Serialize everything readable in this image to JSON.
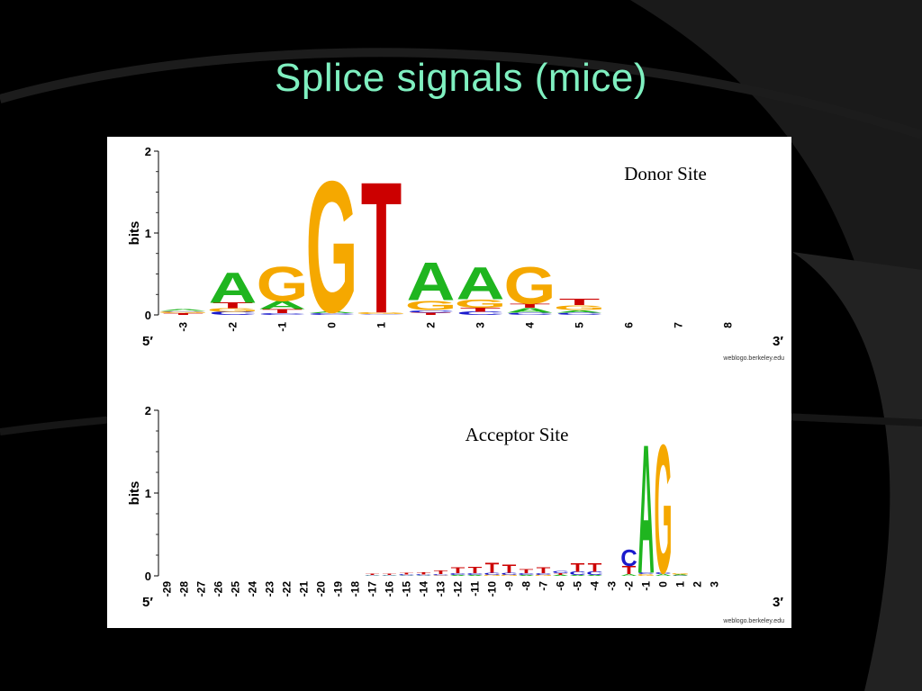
{
  "slide": {
    "title": "Splice signals (mice)"
  },
  "chart_data": [
    {
      "type": "sequence-logo",
      "title": "Donor Site",
      "ylabel": "bits",
      "ylim": [
        0,
        2
      ],
      "yticks": [
        "0",
        "1",
        "2"
      ],
      "end_left": "5′",
      "end_right": "3′",
      "credit": "weblogo.berkeley.edu",
      "positions": [
        {
          "label": "-3",
          "stack": [
            {
              "base": "T",
              "bits": 0.02
            },
            {
              "base": "G",
              "bits": 0.02
            },
            {
              "base": "C",
              "bits": 0.01
            },
            {
              "base": "A",
              "bits": 0.02
            }
          ]
        },
        {
          "label": "-2",
          "stack": [
            {
              "base": "C",
              "bits": 0.04
            },
            {
              "base": "G",
              "bits": 0.04
            },
            {
              "base": "T",
              "bits": 0.07
            },
            {
              "base": "A",
              "bits": 0.38
            }
          ]
        },
        {
          "label": "-1",
          "stack": [
            {
              "base": "C",
              "bits": 0.02
            },
            {
              "base": "T",
              "bits": 0.05
            },
            {
              "base": "A",
              "bits": 0.1
            },
            {
              "base": "G",
              "bits": 0.43
            }
          ]
        },
        {
          "label": "0",
          "stack": [
            {
              "base": "C",
              "bits": 0.02
            },
            {
              "base": "A",
              "bits": 0.02
            },
            {
              "base": "G",
              "bits": 1.65
            }
          ]
        },
        {
          "label": "1",
          "stack": [
            {
              "base": "C",
              "bits": 0.01
            },
            {
              "base": "G",
              "bits": 0.02
            },
            {
              "base": "T",
              "bits": 1.65
            }
          ]
        },
        {
          "label": "2",
          "stack": [
            {
              "base": "T",
              "bits": 0.03
            },
            {
              "base": "C",
              "bits": 0.03
            },
            {
              "base": "G",
              "bits": 0.12
            },
            {
              "base": "A",
              "bits": 0.48
            }
          ]
        },
        {
          "label": "3",
          "stack": [
            {
              "base": "C",
              "bits": 0.04
            },
            {
              "base": "T",
              "bits": 0.05
            },
            {
              "base": "G",
              "bits": 0.1
            },
            {
              "base": "A",
              "bits": 0.4
            }
          ]
        },
        {
          "label": "4",
          "stack": [
            {
              "base": "C",
              "bits": 0.03
            },
            {
              "base": "A",
              "bits": 0.06
            },
            {
              "base": "T",
              "bits": 0.05
            },
            {
              "base": "G",
              "bits": 0.46
            }
          ]
        },
        {
          "label": "5",
          "stack": [
            {
              "base": "C",
              "bits": 0.03
            },
            {
              "base": "A",
              "bits": 0.03
            },
            {
              "base": "G",
              "bits": 0.06
            },
            {
              "base": "T",
              "bits": 0.08
            }
          ]
        },
        {
          "label": "6",
          "stack": []
        },
        {
          "label": "7",
          "stack": []
        },
        {
          "label": "8",
          "stack": []
        }
      ]
    },
    {
      "type": "sequence-logo",
      "title": "Acceptor Site",
      "ylabel": "bits",
      "ylim": [
        0,
        2
      ],
      "yticks": [
        "0",
        "1",
        "2"
      ],
      "end_left": "5′",
      "end_right": "3′",
      "credit": "weblogo.berkeley.edu",
      "positions": [
        {
          "label": "-29",
          "stack": []
        },
        {
          "label": "-28",
          "stack": []
        },
        {
          "label": "-27",
          "stack": []
        },
        {
          "label": "-26",
          "stack": []
        },
        {
          "label": "-25",
          "stack": []
        },
        {
          "label": "-24",
          "stack": []
        },
        {
          "label": "-23",
          "stack": []
        },
        {
          "label": "-22",
          "stack": []
        },
        {
          "label": "-21",
          "stack": []
        },
        {
          "label": "-20",
          "stack": []
        },
        {
          "label": "-19",
          "stack": []
        },
        {
          "label": "-18",
          "stack": []
        },
        {
          "label": "-17",
          "stack": [
            {
              "base": "A",
              "bits": 0.005
            },
            {
              "base": "C",
              "bits": 0.005
            },
            {
              "base": "T",
              "bits": 0.01
            }
          ]
        },
        {
          "label": "-16",
          "stack": [
            {
              "base": "A",
              "bits": 0.005
            },
            {
              "base": "C",
              "bits": 0.008
            },
            {
              "base": "T",
              "bits": 0.015
            }
          ]
        },
        {
          "label": "-15",
          "stack": [
            {
              "base": "A",
              "bits": 0.005
            },
            {
              "base": "C",
              "bits": 0.01
            },
            {
              "base": "T",
              "bits": 0.02
            }
          ]
        },
        {
          "label": "-14",
          "stack": [
            {
              "base": "A",
              "bits": 0.005
            },
            {
              "base": "C",
              "bits": 0.01
            },
            {
              "base": "T",
              "bits": 0.025
            }
          ]
        },
        {
          "label": "-13",
          "stack": [
            {
              "base": "G",
              "bits": 0.005
            },
            {
              "base": "C",
              "bits": 0.015
            },
            {
              "base": "T",
              "bits": 0.04
            }
          ]
        },
        {
          "label": "-12",
          "stack": [
            {
              "base": "A",
              "bits": 0.01
            },
            {
              "base": "C",
              "bits": 0.02
            },
            {
              "base": "T",
              "bits": 0.07
            }
          ]
        },
        {
          "label": "-11",
          "stack": [
            {
              "base": "A",
              "bits": 0.01
            },
            {
              "base": "C",
              "bits": 0.02
            },
            {
              "base": "T",
              "bits": 0.08
            }
          ]
        },
        {
          "label": "-10",
          "stack": [
            {
              "base": "G",
              "bits": 0.01
            },
            {
              "base": "C",
              "bits": 0.03
            },
            {
              "base": "T",
              "bits": 0.12
            }
          ]
        },
        {
          "label": "-9",
          "stack": [
            {
              "base": "G",
              "bits": 0.01
            },
            {
              "base": "C",
              "bits": 0.03
            },
            {
              "base": "T",
              "bits": 0.1
            }
          ]
        },
        {
          "label": "-8",
          "stack": [
            {
              "base": "A",
              "bits": 0.01
            },
            {
              "base": "C",
              "bits": 0.02
            },
            {
              "base": "T",
              "bits": 0.05
            }
          ]
        },
        {
          "label": "-7",
          "stack": [
            {
              "base": "G",
              "bits": 0.01
            },
            {
              "base": "C",
              "bits": 0.02
            },
            {
              "base": "T",
              "bits": 0.07
            }
          ]
        },
        {
          "label": "-6",
          "stack": [
            {
              "base": "A",
              "bits": 0.01
            },
            {
              "base": "T",
              "bits": 0.02
            },
            {
              "base": "C",
              "bits": 0.03
            }
          ]
        },
        {
          "label": "-5",
          "stack": [
            {
              "base": "A",
              "bits": 0.01
            },
            {
              "base": "C",
              "bits": 0.04
            },
            {
              "base": "T",
              "bits": 0.11
            }
          ]
        },
        {
          "label": "-4",
          "stack": [
            {
              "base": "A",
              "bits": 0.01
            },
            {
              "base": "C",
              "bits": 0.04
            },
            {
              "base": "T",
              "bits": 0.11
            }
          ]
        },
        {
          "label": "-3",
          "stack": []
        },
        {
          "label": "-2",
          "stack": [
            {
              "base": "A",
              "bits": 0.02
            },
            {
              "base": "T",
              "bits": 0.1
            },
            {
              "base": "C",
              "bits": 0.2
            }
          ]
        },
        {
          "label": "-1",
          "stack": [
            {
              "base": "G",
              "bits": 0.02
            },
            {
              "base": "C",
              "bits": 0.02
            },
            {
              "base": "A",
              "bits": 1.6
            }
          ]
        },
        {
          "label": "0",
          "stack": [
            {
              "base": "A",
              "bits": 0.02
            },
            {
              "base": "C",
              "bits": 0.02
            },
            {
              "base": "G",
              "bits": 1.6
            }
          ]
        },
        {
          "label": "1",
          "stack": [
            {
              "base": "C",
              "bits": 0.005
            },
            {
              "base": "A",
              "bits": 0.01
            },
            {
              "base": "G",
              "bits": 0.015
            }
          ]
        },
        {
          "label": "2",
          "stack": []
        },
        {
          "label": "3",
          "stack": []
        }
      ]
    }
  ],
  "colors": {
    "A": "#1fb51f",
    "C": "#1a1acc",
    "G": "#f5a800",
    "T": "#cc0000",
    "title": "#7ff0c0"
  }
}
